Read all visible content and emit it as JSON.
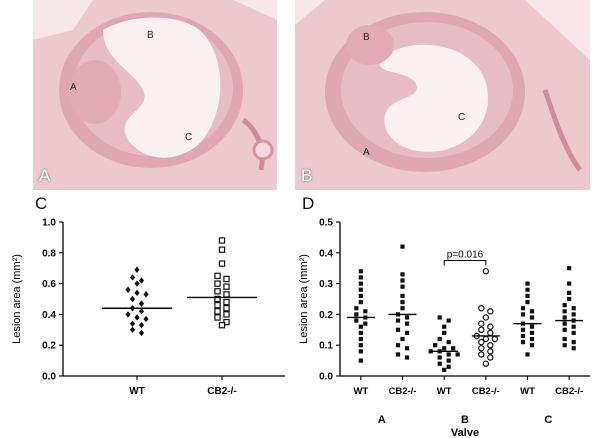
{
  "panels": {
    "A": {
      "letter": "A",
      "regions": [
        "A",
        "B",
        "C"
      ]
    },
    "B": {
      "letter": "B",
      "regions": [
        "A",
        "B",
        "C"
      ]
    },
    "C": {
      "letter": "C"
    },
    "D": {
      "letter": "D"
    }
  },
  "colors": {
    "tissue_bg": "#ecc8cf",
    "tissue_dark": "#d79aa7",
    "lumen": "#fbf1f3"
  },
  "chart_data": [
    {
      "type": "scatter",
      "title": "",
      "xlabel": "",
      "ylabel": "Lesion area (mm²)",
      "ylim": [
        0,
        1.0
      ],
      "yticks": [
        "0.0",
        "0.2",
        "0.4",
        "0.6",
        "0.8",
        "1.0"
      ],
      "categories": [
        "WT",
        "CB2-/-"
      ],
      "series": [
        {
          "category": "WT",
          "marker": "filled-diamond",
          "mean": 0.44,
          "values": [
            0.69,
            0.64,
            0.62,
            0.6,
            0.56,
            0.54,
            0.53,
            0.5,
            0.47,
            0.44,
            0.42,
            0.4,
            0.38,
            0.37,
            0.34,
            0.33,
            0.3,
            0.28
          ]
        },
        {
          "category": "CB2-/-",
          "marker": "open-square",
          "mean": 0.51,
          "values": [
            0.88,
            0.82,
            0.73,
            0.65,
            0.63,
            0.6,
            0.58,
            0.55,
            0.53,
            0.5,
            0.48,
            0.46,
            0.44,
            0.42,
            0.4,
            0.38,
            0.35,
            0.33
          ]
        }
      ]
    },
    {
      "type": "scatter",
      "title": "",
      "xlabel": "Valve",
      "ylabel": "Lesion area (mm²)",
      "ylim": [
        0,
        0.5
      ],
      "yticks": [
        "0.0",
        "0.1",
        "0.2",
        "0.3",
        "0.4",
        "0.5"
      ],
      "categories": [
        "WT",
        "CB2-/-",
        "WT",
        "CB2-/-",
        "WT",
        "CB2-/-"
      ],
      "groups": [
        "A",
        "B",
        "C"
      ],
      "annotation": {
        "text": "p=0.016",
        "between": [
          2,
          3
        ]
      },
      "series": [
        {
          "category": "WT",
          "group": "A",
          "marker": "filled-square",
          "mean": 0.19,
          "values": [
            0.34,
            0.32,
            0.3,
            0.28,
            0.26,
            0.24,
            0.22,
            0.21,
            0.2,
            0.19,
            0.18,
            0.17,
            0.16,
            0.14,
            0.12,
            0.1,
            0.08,
            0.05
          ]
        },
        {
          "category": "CB2-/-",
          "group": "A",
          "marker": "filled-square",
          "mean": 0.2,
          "values": [
            0.42,
            0.33,
            0.31,
            0.29,
            0.26,
            0.24,
            0.22,
            0.2,
            0.19,
            0.18,
            0.17,
            0.15,
            0.14,
            0.12,
            0.1,
            0.09,
            0.07,
            0.06
          ]
        },
        {
          "category": "WT",
          "group": "B",
          "marker": "filled-square",
          "mean": 0.08,
          "values": [
            0.19,
            0.18,
            0.16,
            0.14,
            0.12,
            0.11,
            0.1,
            0.09,
            0.09,
            0.08,
            0.08,
            0.07,
            0.07,
            0.06,
            0.05,
            0.04,
            0.03,
            0.02
          ]
        },
        {
          "category": "CB2-/-",
          "group": "B",
          "marker": "open-circle",
          "mean": 0.13,
          "values": [
            0.34,
            0.22,
            0.21,
            0.19,
            0.17,
            0.16,
            0.15,
            0.14,
            0.13,
            0.12,
            0.12,
            0.11,
            0.1,
            0.09,
            0.08,
            0.07,
            0.06,
            0.04
          ]
        },
        {
          "category": "WT",
          "group": "C",
          "marker": "filled-square",
          "mean": 0.17,
          "values": [
            0.3,
            0.28,
            0.26,
            0.24,
            0.22,
            0.21,
            0.2,
            0.19,
            0.17,
            0.16,
            0.15,
            0.14,
            0.13,
            0.12,
            0.11,
            0.1,
            0.07
          ]
        },
        {
          "category": "CB2-/-",
          "group": "C",
          "marker": "filled-square",
          "mean": 0.18,
          "values": [
            0.35,
            0.3,
            0.27,
            0.25,
            0.23,
            0.22,
            0.21,
            0.2,
            0.19,
            0.18,
            0.17,
            0.16,
            0.15,
            0.14,
            0.12,
            0.11,
            0.1,
            0.09
          ]
        }
      ]
    }
  ]
}
